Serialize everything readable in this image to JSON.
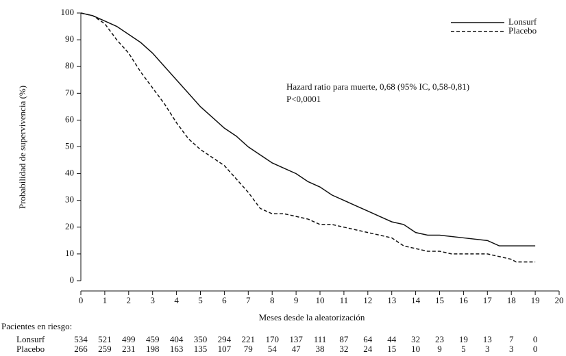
{
  "chart_data": {
    "type": "line",
    "x_label": "Meses desde la aleatorización",
    "y_label": "Probabilidad de supervivencia (%)",
    "xlim": [
      0,
      20
    ],
    "xticks": [
      0,
      1,
      2,
      3,
      4,
      5,
      6,
      7,
      8,
      9,
      10,
      11,
      12,
      13,
      14,
      15,
      16,
      17,
      18,
      19,
      20
    ],
    "ylim": [
      0,
      100
    ],
    "yticks": [
      0,
      10,
      20,
      30,
      40,
      50,
      60,
      70,
      80,
      90,
      100
    ],
    "legend": "top-right",
    "annotations": [
      "Hazard ratio para muerte, 0,68 (95% IC, 0,58-0,81)",
      "P<0,0001"
    ],
    "series": [
      {
        "name": "Lonsurf",
        "color": "#111111",
        "style": "solid",
        "x": [
          0,
          0.5,
          1,
          1.5,
          2,
          2.5,
          3,
          3.5,
          4,
          4.5,
          5,
          5.5,
          6,
          6.5,
          7,
          7.5,
          8,
          8.5,
          9,
          9.5,
          10,
          10.5,
          11,
          11.5,
          12,
          12.5,
          13,
          13.5,
          14,
          14.5,
          15,
          16,
          17,
          17.5,
          18,
          19
        ],
        "values": [
          100,
          99,
          97,
          95,
          92,
          89,
          85,
          80,
          75,
          70,
          65,
          61,
          57,
          54,
          50,
          47,
          44,
          42,
          40,
          37,
          35,
          32,
          30,
          28,
          26,
          24,
          22,
          21,
          18,
          17,
          17,
          16,
          15,
          13,
          13,
          13
        ]
      },
      {
        "name": "Placebo",
        "color": "#111111",
        "style": "dashed",
        "x": [
          0,
          0.5,
          1,
          1.5,
          2,
          2.5,
          3,
          3.5,
          4,
          4.5,
          5,
          5.5,
          6,
          6.5,
          7,
          7.5,
          8,
          8.5,
          9,
          9.5,
          10,
          10.5,
          11,
          11.5,
          12,
          12.5,
          13,
          13.5,
          14,
          14.5,
          15,
          15.5,
          16,
          17,
          18,
          18.2,
          19
        ],
        "values": [
          100,
          99,
          96,
          90,
          85,
          78,
          72,
          66,
          59,
          53,
          49,
          46,
          43,
          38,
          33,
          27,
          25,
          25,
          24,
          23,
          21,
          21,
          20,
          19,
          18,
          17,
          16,
          13,
          12,
          11,
          11,
          10,
          10,
          10,
          8,
          7,
          7
        ]
      }
    ],
    "at_risk": {
      "title": "Pacientes en riesgo:",
      "rows": [
        {
          "name": "Lonsurf",
          "values": [
            534,
            521,
            499,
            459,
            404,
            350,
            294,
            221,
            170,
            137,
            111,
            87,
            64,
            44,
            32,
            23,
            19,
            13,
            7,
            0
          ]
        },
        {
          "name": "Placebo",
          "values": [
            266,
            259,
            231,
            198,
            163,
            135,
            107,
            79,
            54,
            47,
            38,
            32,
            24,
            15,
            10,
            9,
            5,
            3,
            3,
            0
          ]
        }
      ]
    }
  }
}
